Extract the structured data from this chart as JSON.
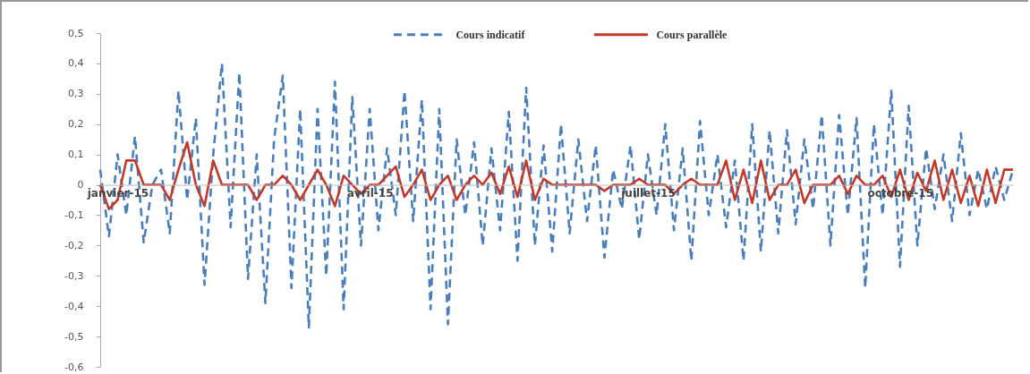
{
  "chart_data": {
    "type": "line",
    "categories": [
      null,
      null,
      "janvier-15",
      null,
      null,
      null,
      null,
      null,
      null,
      null,
      null,
      null,
      null,
      null,
      null,
      null,
      null,
      null,
      null,
      null,
      null,
      null,
      null,
      null,
      null,
      null,
      null,
      null,
      null,
      null,
      null,
      "avril-15",
      null,
      null,
      null,
      null,
      null,
      null,
      null,
      null,
      null,
      null,
      null,
      null,
      null,
      null,
      null,
      null,
      null,
      null,
      null,
      null,
      null,
      null,
      null,
      null,
      null,
      null,
      null,
      null,
      null,
      null,
      null,
      "juillet-15",
      null,
      null,
      null,
      null,
      null,
      null,
      null,
      null,
      null,
      null,
      null,
      null,
      null,
      null,
      null,
      null,
      null,
      null,
      null,
      null,
      null,
      null,
      null,
      null,
      null,
      null,
      null,
      null,
      "octobre-15",
      null,
      null,
      null,
      null,
      null,
      null,
      null,
      null,
      null,
      null,
      null,
      null,
      null
    ],
    "series": [
      {
        "name": "Cours indicatif",
        "color": "#4a7ebb",
        "line_style": "dashed",
        "values": [
          0.05,
          -0.17,
          0.1,
          -0.1,
          0.16,
          -0.19,
          0.0,
          0.05,
          -0.16,
          0.31,
          -0.05,
          0.22,
          -0.33,
          0.1,
          0.4,
          -0.14,
          0.37,
          -0.31,
          0.1,
          -0.39,
          0.15,
          0.36,
          -0.34,
          0.25,
          -0.47,
          0.25,
          -0.3,
          0.34,
          -0.41,
          0.29,
          -0.2,
          0.25,
          -0.15,
          0.12,
          -0.1,
          0.31,
          -0.12,
          0.28,
          -0.41,
          0.25,
          -0.46,
          0.15,
          -0.1,
          0.14,
          -0.2,
          0.12,
          -0.15,
          0.24,
          -0.25,
          0.32,
          -0.2,
          0.13,
          -0.22,
          0.2,
          -0.16,
          0.15,
          -0.12,
          0.13,
          -0.24,
          0.05,
          -0.08,
          0.13,
          -0.18,
          0.1,
          -0.1,
          0.2,
          -0.15,
          0.12,
          -0.25,
          0.21,
          -0.1,
          0.1,
          -0.14,
          0.08,
          -0.25,
          0.2,
          -0.22,
          0.18,
          -0.16,
          0.18,
          -0.13,
          0.15,
          -0.08,
          0.23,
          -0.2,
          0.23,
          -0.1,
          0.22,
          -0.34,
          0.2,
          -0.1,
          0.31,
          -0.27,
          0.26,
          -0.2,
          0.12,
          -0.08,
          0.1,
          -0.12,
          0.17,
          -0.1,
          0.05,
          -0.08,
          0.06,
          -0.05,
          0.05
        ]
      },
      {
        "name": "Cours parallèle",
        "color": "#c0392b",
        "line_style": "solid",
        "values": [
          0,
          -0.08,
          -0.05,
          0.08,
          0.08,
          0,
          0,
          0,
          -0.05,
          0.05,
          0.14,
          0,
          -0.07,
          0.08,
          0,
          0,
          0,
          0,
          -0.05,
          0,
          0,
          0.03,
          0,
          -0.05,
          0,
          0.05,
          0,
          -0.07,
          0.03,
          0,
          -0.03,
          0,
          0,
          0.03,
          0.06,
          -0.04,
          0,
          0.05,
          -0.05,
          0,
          0.03,
          -0.05,
          0,
          0.03,
          0,
          0.04,
          -0.03,
          0.06,
          -0.04,
          0.08,
          -0.05,
          0.02,
          0,
          0,
          0,
          0,
          0,
          0,
          -0.02,
          0,
          0,
          0,
          0.02,
          0,
          0,
          0,
          -0.03,
          0,
          0.02,
          0,
          0,
          0,
          0.08,
          -0.05,
          0.05,
          -0.06,
          0.08,
          -0.05,
          0,
          0,
          0.05,
          -0.06,
          0,
          0,
          0,
          0.03,
          -0.03,
          0.03,
          0,
          0,
          0.03,
          -0.04,
          0.05,
          -0.05,
          0.04,
          -0.02,
          0.08,
          -0.05,
          0.05,
          -0.06,
          0.03,
          -0.07,
          0.05,
          -0.06,
          0.05,
          0.05
        ]
      }
    ],
    "ylim": [
      -0.6,
      0.5
    ],
    "yticks": [
      {
        "value": 0.5,
        "label": "0,5"
      },
      {
        "value": 0.4,
        "label": "0,4"
      },
      {
        "value": 0.3,
        "label": "0,3"
      },
      {
        "value": 0.2,
        "label": "0,2"
      },
      {
        "value": 0.1,
        "label": "0,1"
      },
      0,
      {
        "value": -0.1,
        "label": "-0,1"
      },
      {
        "value": -0.2,
        "label": "-0,2"
      },
      {
        "value": -0.3,
        "label": "-0,3"
      },
      {
        "value": -0.4,
        "label": "-0,4"
      },
      {
        "value": -0.5,
        "label": "-0,5"
      },
      {
        "value": -0.6,
        "label": "-0,6"
      }
    ],
    "legend": "top"
  }
}
